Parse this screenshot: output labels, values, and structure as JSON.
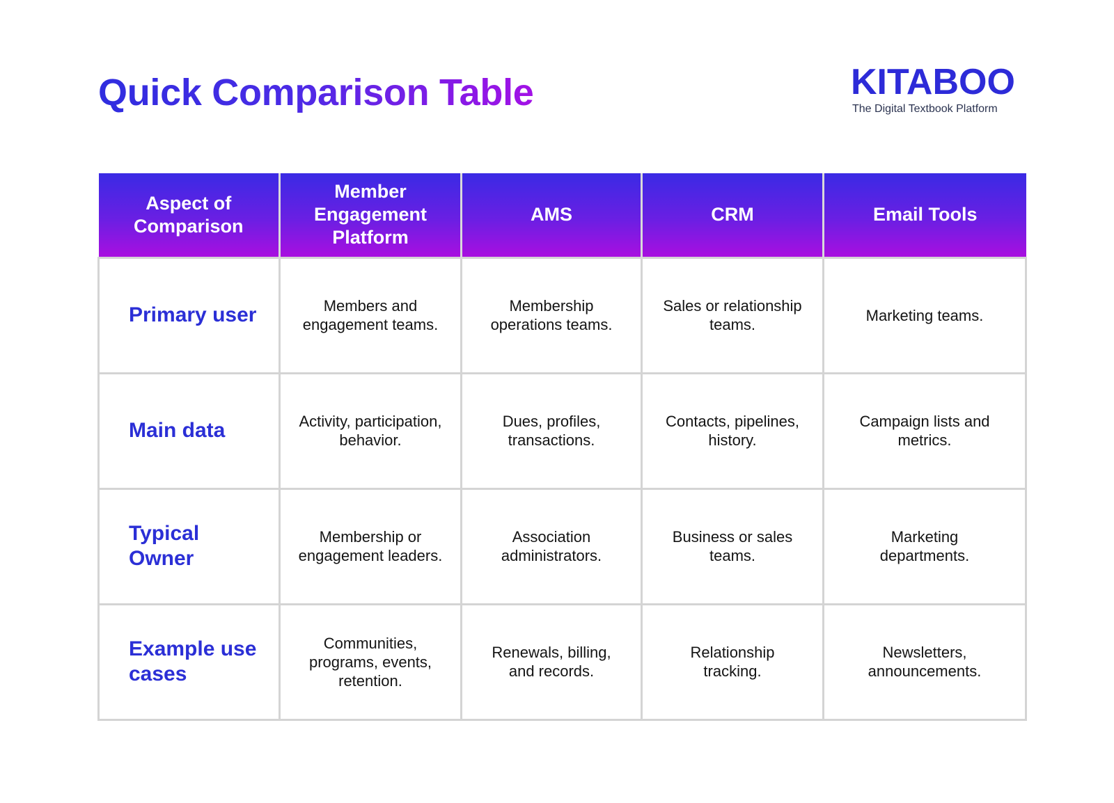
{
  "title": "Quick Comparison Table",
  "brand": {
    "name": "KITABOO",
    "tagline": "The Digital Textbook Platform"
  },
  "colors": {
    "title_gradient_start": "#2f2ddf",
    "title_gradient_end": "#a311e6",
    "header_gradient_top": "#3a2ae4",
    "header_gradient_bottom": "#a90fe0",
    "aspect_text": "#2b2fd6",
    "brand": "#2d2bd8",
    "grid_border": "#d4d4d4"
  },
  "table": {
    "headers": [
      "Aspect of Comparison",
      "Member Engagement Platform",
      "AMS",
      "CRM",
      "Email Tools"
    ],
    "rows": [
      {
        "aspect": "Primary user",
        "cells": [
          "Members and engagement teams.",
          "Membership operations teams.",
          "Sales or relationship teams.",
          "Marketing teams."
        ]
      },
      {
        "aspect": "Main data",
        "cells": [
          "Activity, participation, behavior.",
          "Dues, profiles, transactions.",
          "Contacts, pipelines, history.",
          "Campaign lists and metrics."
        ]
      },
      {
        "aspect": "Typical Owner",
        "cells": [
          "Membership or engagement leaders.",
          "Association administrators.",
          "Business or sales teams.",
          "Marketing departments."
        ]
      },
      {
        "aspect": "Example use cases",
        "cells": [
          "Communities, programs, events, retention.",
          "Renewals, billing, and records.",
          "Relationship tracking.",
          "Newsletters, announcements."
        ]
      }
    ]
  }
}
